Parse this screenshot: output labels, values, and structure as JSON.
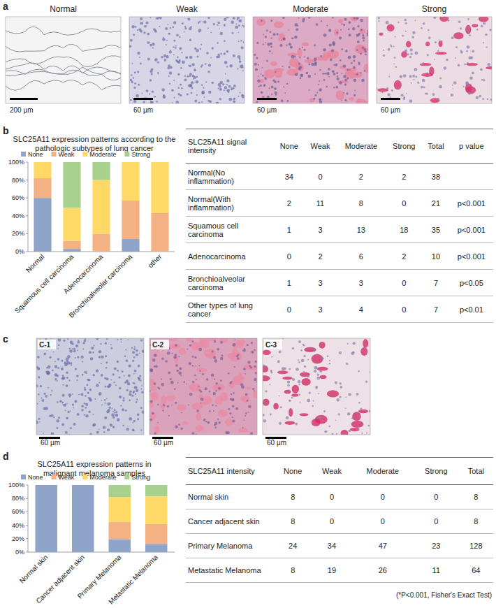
{
  "panel_labels": [
    "a",
    "b",
    "c",
    "d"
  ],
  "panel_a": {
    "images": [
      {
        "title": "Normal",
        "scale_label": "200 µm"
      },
      {
        "title": "Weak",
        "scale_label": "60 µm"
      },
      {
        "title": "Moderate",
        "scale_label": "60 µm"
      },
      {
        "title": "Strong",
        "scale_label": "60 µm"
      }
    ]
  },
  "panel_c": {
    "images": [
      {
        "title": "C-1",
        "scale_label": "60 µm"
      },
      {
        "title": "C-2",
        "scale_label": "60 µm"
      },
      {
        "title": "C-3",
        "scale_label": "60 µm"
      }
    ]
  },
  "chart_data": [
    {
      "type": "bar",
      "stacked": true,
      "grid": false,
      "legend": "top",
      "title": "SLC25A11 expression patterns according to the pathologic subtypes of lung cancer",
      "categories": [
        "Normal",
        "Squamous cell carcinoma",
        "Adenocarcinoma",
        "Bronchioalveolar carcinoma",
        "other"
      ],
      "series": [
        {
          "name": "None",
          "color": "#8ea4c8",
          "values": [
            60,
            3,
            0,
            14,
            0
          ]
        },
        {
          "name": "Weak",
          "color": "#f4b183",
          "values": [
            22,
            9,
            20,
            43,
            43
          ]
        },
        {
          "name": "Moderate",
          "color": "#ffd966",
          "values": [
            18,
            37,
            60,
            43,
            57
          ]
        },
        {
          "name": "Strong",
          "color": "#a9d18e",
          "values": [
            0,
            51,
            20,
            0,
            0
          ]
        }
      ],
      "ylim": [
        0,
        100
      ],
      "yticks": [
        {
          "value": 0,
          "label": "0%"
        },
        {
          "value": 20,
          "label": "20%"
        },
        {
          "value": 40,
          "label": "40%"
        },
        {
          "value": 60,
          "label": "60%"
        },
        {
          "value": 80,
          "label": "80%"
        },
        {
          "value": 100,
          "label": "100%"
        }
      ]
    },
    {
      "type": "bar",
      "stacked": true,
      "grid": false,
      "legend": "top",
      "title": "SLC25A11 expression patterns in malignant melanoma samples",
      "categories": [
        "Normal skin",
        "Cancer adjacent skin",
        "Primary Melanoma",
        "Metastatic Melanoma"
      ],
      "series": [
        {
          "name": "None",
          "color": "#8ea4c8",
          "values": [
            100,
            100,
            19,
            12
          ]
        },
        {
          "name": "Weak",
          "color": "#f4b183",
          "values": [
            0,
            0,
            26,
            30
          ]
        },
        {
          "name": "Moderate",
          "color": "#ffd966",
          "values": [
            0,
            0,
            37,
            41
          ]
        },
        {
          "name": "Strong",
          "color": "#a9d18e",
          "values": [
            0,
            0,
            18,
            17
          ]
        }
      ],
      "ylim": [
        0,
        100
      ],
      "yticks": [
        {
          "value": 0,
          "label": "0%"
        },
        {
          "value": 20,
          "label": "20%"
        },
        {
          "value": 40,
          "label": "40%"
        },
        {
          "value": 60,
          "label": "60%"
        },
        {
          "value": 80,
          "label": "80%"
        },
        {
          "value": 100,
          "label": "100%"
        }
      ]
    }
  ],
  "tables": [
    {
      "header": [
        "SLC25A11 signal intensity",
        "None",
        "Weak",
        "Moderate",
        "Strong",
        "Total",
        "p value"
      ],
      "rows": [
        {
          "name": "Normal(No inflammation)",
          "counts": [
            34,
            0,
            2,
            2
          ],
          "total": 38
        },
        {
          "name": "Normal(With inflammation)",
          "counts": [
            2,
            11,
            8,
            0
          ],
          "total": 21,
          "p_value": "p<0.001"
        },
        {
          "name": "Squamous cell carcinoma",
          "counts": [
            1,
            3,
            13,
            18
          ],
          "total": 35,
          "p_value": "p<0.001"
        },
        {
          "name": "Adenocarcinoma",
          "counts": [
            0,
            2,
            6,
            2
          ],
          "total": 10,
          "p_value": "p<0.001"
        },
        {
          "name": "Bronchioalveolar carcinoma",
          "counts": [
            1,
            3,
            3,
            0
          ],
          "total": 7,
          "p_value": "p<0.05"
        },
        {
          "name": "Other types of lung cancer",
          "counts": [
            0,
            3,
            4,
            0
          ],
          "total": 7,
          "p_value": "p<0.01"
        }
      ]
    },
    {
      "header": [
        "SLC25A11 intensity",
        "None",
        "Weak",
        "Moderate",
        "Strong",
        "Total"
      ],
      "rows": [
        {
          "name": "Normal skin",
          "counts": [
            8,
            0,
            0,
            0
          ],
          "total": 8
        },
        {
          "name": "Cancer adjacent skin",
          "counts": [
            8,
            0,
            0,
            0
          ],
          "total": 8
        },
        {
          "name": "Primary Melanoma",
          "counts": [
            24,
            34,
            47,
            23
          ],
          "total": 128
        },
        {
          "name": "Metastatic Melanoma",
          "counts": [
            8,
            19,
            26,
            11
          ],
          "total": 64
        }
      ]
    }
  ],
  "footnote": "(*P<0.001, Fisher's Exact Test)"
}
